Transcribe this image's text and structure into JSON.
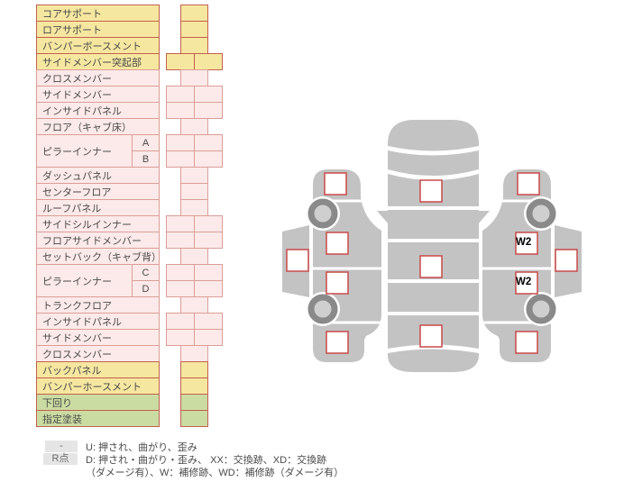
{
  "table": {
    "rows": [
      {
        "label": "コアサポート",
        "color": "yellow",
        "cells": 1
      },
      {
        "label": "ロアサポート",
        "color": "yellow",
        "cells": 1
      },
      {
        "label": "バンパーボースメント",
        "color": "yellow",
        "cells": 1
      },
      {
        "label": "サイドメンバー突起部",
        "color": "yellow",
        "cells": 2
      },
      {
        "label": "クロスメンバー",
        "color": "pink",
        "cells": 1
      },
      {
        "label": "サイドメンバー",
        "color": "pink",
        "cells": 2
      },
      {
        "label": "インサイドパネル",
        "color": "pink",
        "cells": 2
      },
      {
        "label": "フロア（キャブ床）",
        "color": "pink",
        "cells": 1
      },
      {
        "label": "ピラーインナー",
        "sub": "A",
        "group": "pillar-front",
        "groupStart": true,
        "color": "pink",
        "cells": 2
      },
      {
        "label": "ピラーインナー",
        "sub": "B",
        "group": "pillar-front",
        "color": "pink",
        "cells": 2
      },
      {
        "label": "ダッシュパネル",
        "color": "pink",
        "cells": 1
      },
      {
        "label": "センターフロア",
        "color": "pink",
        "cells": 1
      },
      {
        "label": "ルーフパネル",
        "color": "pink",
        "cells": 1
      },
      {
        "label": "サイドシルインナー",
        "color": "pink",
        "cells": 2
      },
      {
        "label": "フロアサイドメンバー",
        "color": "pink",
        "cells": 2
      },
      {
        "label": "セットバック（キャブ背）",
        "color": "pink",
        "cells": 1
      },
      {
        "label": "ピラーインナー",
        "sub": "C",
        "group": "pillar-rear",
        "groupStart": true,
        "color": "pink",
        "cells": 2
      },
      {
        "label": "ピラーインナー",
        "sub": "D",
        "group": "pillar-rear",
        "color": "pink",
        "cells": 2
      },
      {
        "label": "トランクフロア",
        "color": "pink",
        "cells": 1
      },
      {
        "label": "インサイドパネル",
        "color": "pink",
        "cells": 2
      },
      {
        "label": "サイドメンバー",
        "color": "pink",
        "cells": 2
      },
      {
        "label": "クロスメンバー",
        "color": "pink",
        "cells": 1
      },
      {
        "label": "バックパネル",
        "color": "yellow",
        "cells": 1
      },
      {
        "label": "バンパーホースメント",
        "color": "yellow",
        "cells": 1
      },
      {
        "label": "下回り",
        "color": "green",
        "cells": 1
      },
      {
        "label": "指定塗装",
        "color": "green",
        "cells": 1
      }
    ]
  },
  "diagram": {
    "marks": {
      "right_front_door": "W2",
      "right_rear_door": "W2"
    }
  },
  "legend": {
    "badge1": "-",
    "line1": "U: 押され、曲がり、歪み",
    "badge2": "R点",
    "line2": "D: 押され・曲がり・歪み、 XX：交換跡、XD：交換跡",
    "line3": "（ダメージ有）、W：補修跡、WD：補修跡（ダメージ有）"
  },
  "colors": {
    "row_yellow": "#F6E7A0",
    "row_pink": "#FBEAE9",
    "row_green": "#CBDCA2",
    "border_strong": "#C2604E",
    "border_pink": "#DD9D97",
    "car_body_gray": "#C3C3C3",
    "wheel_ring_gray": "#8A8A8A",
    "damage_box_border": "#C94A4A",
    "legend_badge_bg": "#E5E5E5"
  }
}
